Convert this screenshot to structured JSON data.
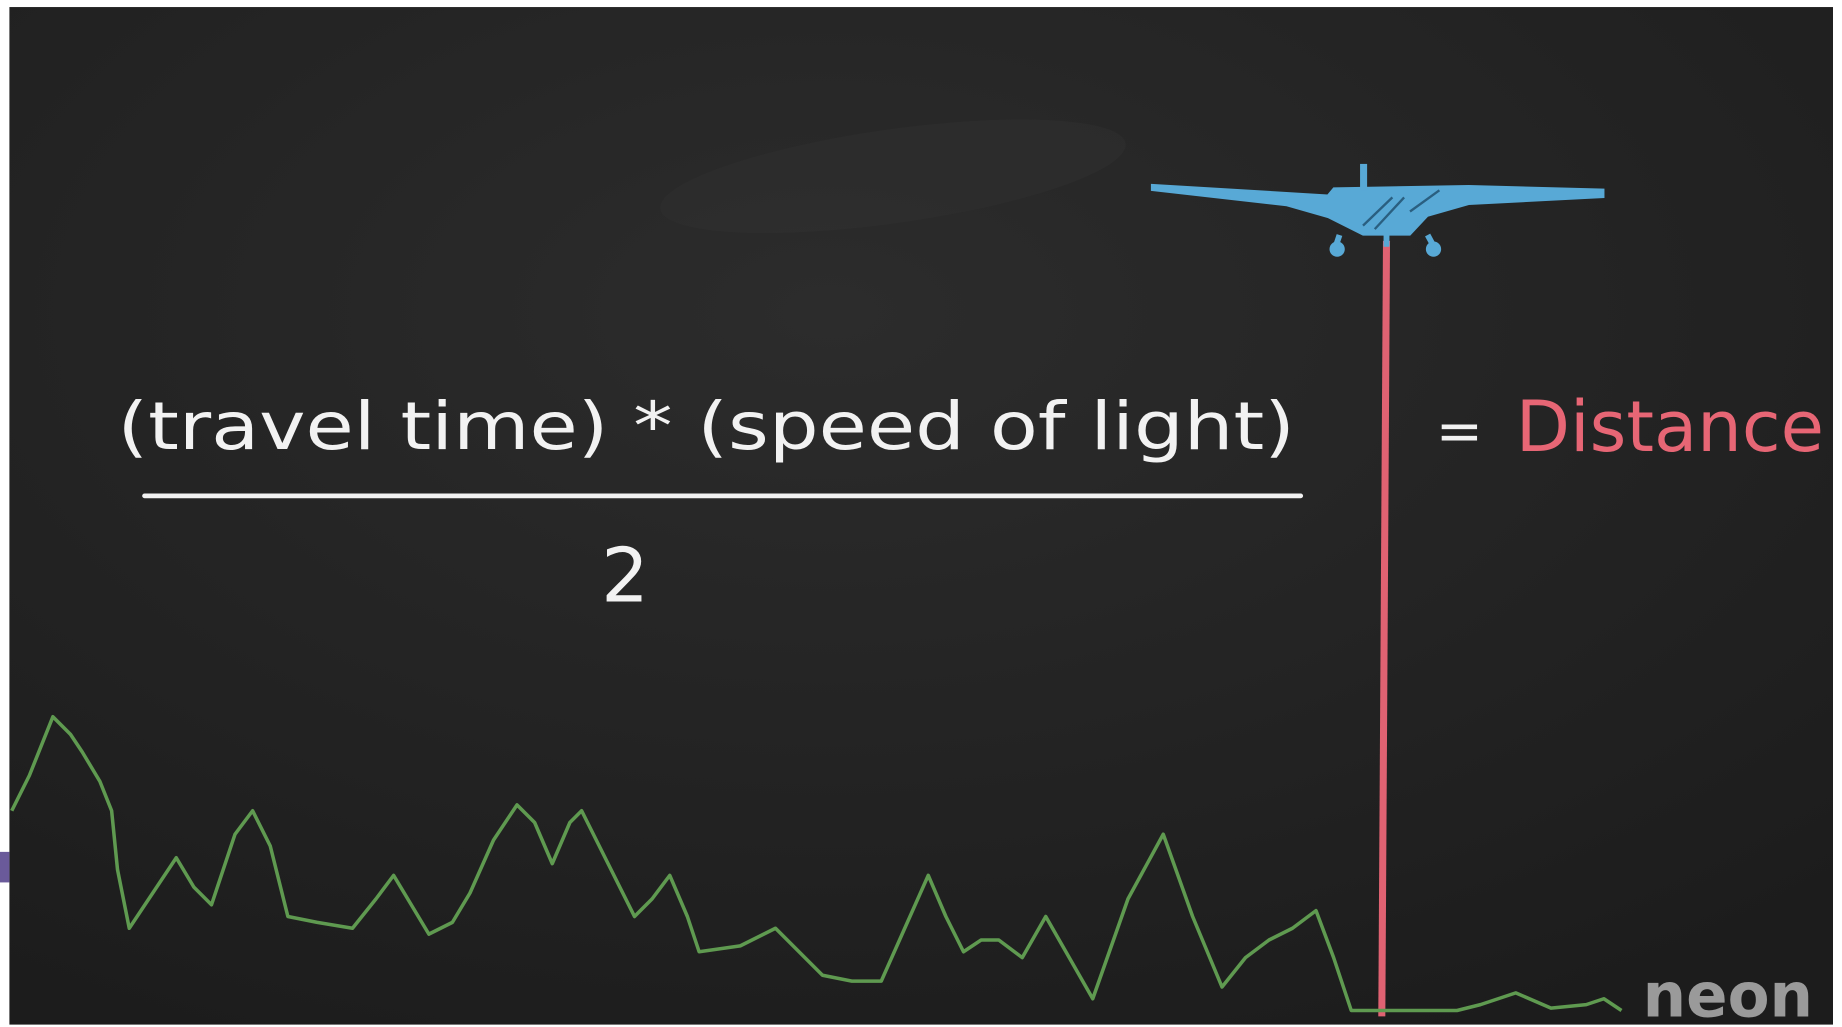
{
  "formula": {
    "numerator": "(travel time) * (speed of light)",
    "denominator": "2",
    "equals": "=",
    "result": "Distance"
  },
  "logo": "neon"
}
